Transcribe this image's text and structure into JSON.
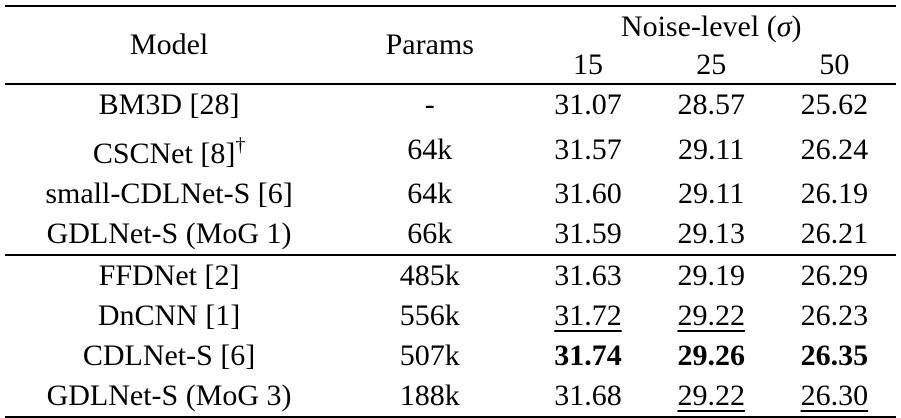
{
  "header": {
    "model": "Model",
    "params": "Params",
    "noise_level_prefix": "Noise-level (",
    "sigma": "σ",
    "noise_level_suffix": ")",
    "sigmas": [
      "15",
      "25",
      "50"
    ]
  },
  "groups": [
    {
      "rows": [
        {
          "model": "BM3D [28]",
          "sup": "",
          "params": "-",
          "v15": "31.07",
          "v25": "28.57",
          "v50": "25.62",
          "fmt": [
            "",
            "",
            ""
          ]
        },
        {
          "model": "CSCNet [8]",
          "sup": "†",
          "params": "64k",
          "v15": "31.57",
          "v25": "29.11",
          "v50": "26.24",
          "fmt": [
            "",
            "",
            ""
          ]
        },
        {
          "model": "small-CDLNet-S [6]",
          "sup": "",
          "params": "64k",
          "v15": "31.60",
          "v25": "29.11",
          "v50": "26.19",
          "fmt": [
            "",
            "",
            ""
          ]
        },
        {
          "model": "GDLNet-S (MoG 1)",
          "sup": "",
          "params": "66k",
          "v15": "31.59",
          "v25": "29.13",
          "v50": "26.21",
          "fmt": [
            "",
            "",
            ""
          ]
        }
      ]
    },
    {
      "rows": [
        {
          "model": "FFDNet [2]",
          "sup": "",
          "params": "485k",
          "v15": "31.63",
          "v25": "29.19",
          "v50": "26.29",
          "fmt": [
            "",
            "",
            ""
          ]
        },
        {
          "model": "DnCNN [1]",
          "sup": "",
          "params": "556k",
          "v15": "31.72",
          "v25": "29.22",
          "v50": "26.23",
          "fmt": [
            "ul",
            "ul",
            ""
          ]
        },
        {
          "model": "CDLNet-S [6]",
          "sup": "",
          "params": "507k",
          "v15": "31.74",
          "v25": "29.26",
          "v50": "26.35",
          "fmt": [
            "bold",
            "bold",
            "bold"
          ]
        },
        {
          "model": "GDLNet-S (MoG 3)",
          "sup": "",
          "params": "188k",
          "v15": "31.68",
          "v25": "29.22",
          "v50": "26.30",
          "fmt": [
            "",
            "ul",
            "ul"
          ]
        }
      ]
    }
  ]
}
